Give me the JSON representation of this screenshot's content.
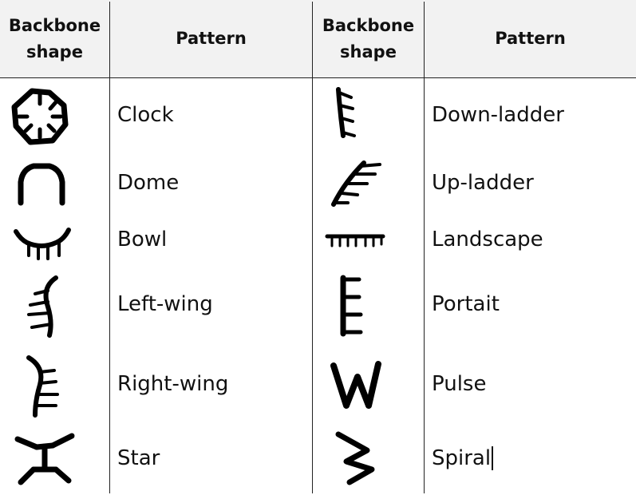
{
  "table": {
    "headers": {
      "shape_left": "Backbone shape",
      "pattern_left": "Pattern",
      "shape_right": "Backbone shape",
      "pattern_right": "Pattern"
    },
    "left_rows": [
      {
        "icon": "clock-shape-icon",
        "pattern": "Clock"
      },
      {
        "icon": "dome-shape-icon",
        "pattern": "Dome"
      },
      {
        "icon": "bowl-shape-icon",
        "pattern": "Bowl"
      },
      {
        "icon": "left-wing-shape-icon",
        "pattern": "Left-wing"
      },
      {
        "icon": "right-wing-shape-icon",
        "pattern": "Right-wing"
      },
      {
        "icon": "star-shape-icon",
        "pattern": "Star"
      }
    ],
    "right_rows": [
      {
        "icon": "down-ladder-shape-icon",
        "pattern": "Down-ladder"
      },
      {
        "icon": "up-ladder-shape-icon",
        "pattern": "Up-ladder"
      },
      {
        "icon": "landscape-shape-icon",
        "pattern": "Landscape"
      },
      {
        "icon": "portrait-shape-icon",
        "pattern": "Portait"
      },
      {
        "icon": "pulse-shape-icon",
        "pattern": "Pulse"
      },
      {
        "icon": "spiral-shape-icon",
        "pattern": "Spiral"
      }
    ]
  }
}
